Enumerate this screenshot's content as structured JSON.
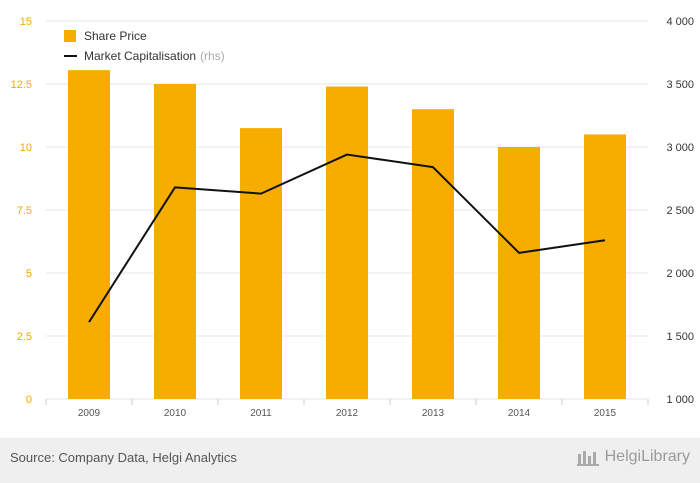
{
  "chart_data": {
    "type": "bar",
    "categories": [
      "2009",
      "2010",
      "2011",
      "2012",
      "2013",
      "2014",
      "2015"
    ],
    "series": [
      {
        "name": "Share Price",
        "type": "bar",
        "axis": "left",
        "color": "#f7ad00",
        "values": [
          13.05,
          12.5,
          10.75,
          12.4,
          11.5,
          10.0,
          10.5
        ]
      },
      {
        "name": "Market Capitalisation",
        "name_suffix": "(rhs)",
        "type": "line",
        "axis": "right",
        "color": "#111111",
        "values": [
          1610,
          2680,
          2630,
          2940,
          2840,
          2160,
          2260
        ]
      }
    ],
    "y_left": {
      "min": 0,
      "max": 15,
      "ticks": [
        0,
        2.5,
        5,
        7.5,
        10,
        12.5,
        15
      ],
      "tick_labels": [
        "0",
        "2.5",
        "5",
        "7.5",
        "10",
        "12.5",
        "15"
      ]
    },
    "y_right": {
      "min": 1000,
      "max": 4000,
      "ticks": [
        1000,
        1500,
        2000,
        2500,
        3000,
        3500,
        4000
      ],
      "tick_labels": [
        "1 000",
        "1 500",
        "2 000",
        "2 500",
        "3 000",
        "3 500",
        "4 000"
      ]
    },
    "grid": true,
    "legend_position": "top-left"
  },
  "footer": {
    "source": "Source: Company Data, Helgi Analytics",
    "brand": "HelgiLibrary"
  }
}
